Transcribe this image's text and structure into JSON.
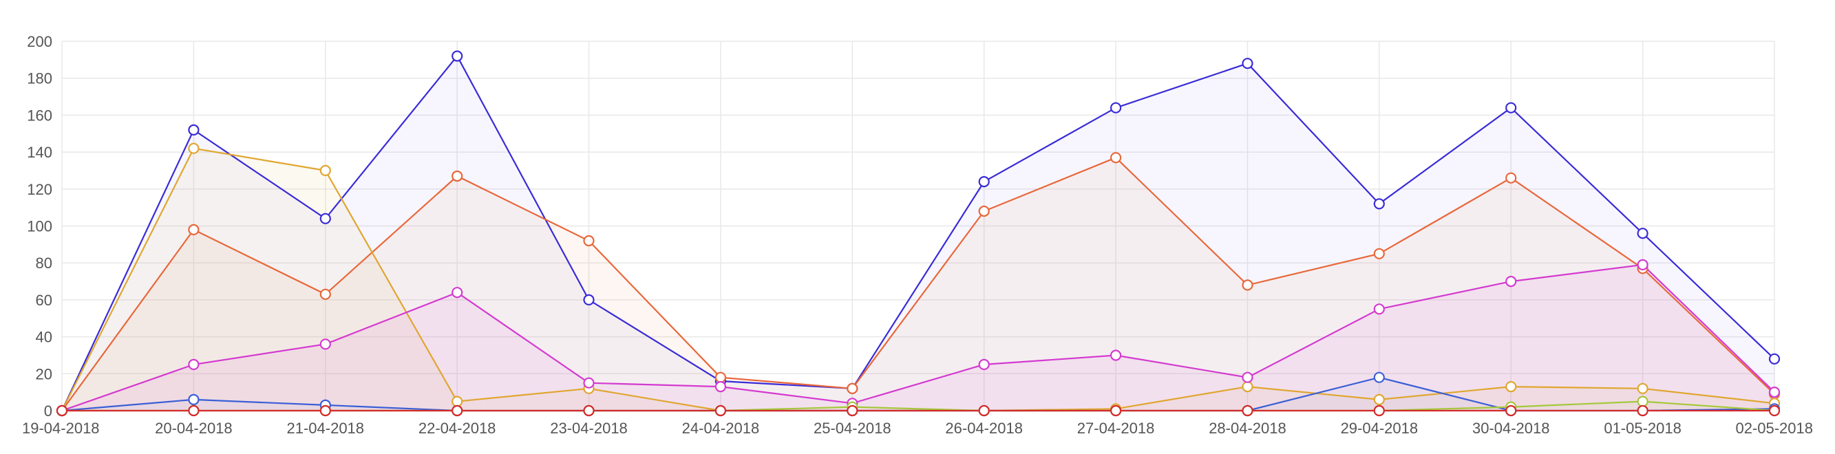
{
  "chart_data": {
    "type": "area",
    "title": "",
    "xlabel": "",
    "ylabel": "",
    "ylim": [
      0,
      200
    ],
    "y_ticks": [
      0,
      20,
      40,
      60,
      80,
      100,
      120,
      140,
      160,
      180,
      200
    ],
    "grid": true,
    "legend": "none",
    "categories": [
      "19-04-2018",
      "20-04-2018",
      "21-04-2018",
      "22-04-2018",
      "23-04-2018",
      "24-04-2018",
      "25-04-2018",
      "26-04-2018",
      "27-04-2018",
      "28-04-2018",
      "29-04-2018",
      "30-04-2018",
      "01-05-2018",
      "02-05-2018"
    ],
    "series": [
      {
        "color": "#3a2bd6",
        "fill": "rgba(120,110,230,0.06)",
        "values": [
          0,
          152,
          104,
          192,
          60,
          16,
          12,
          124,
          164,
          188,
          112,
          164,
          96,
          28
        ]
      },
      {
        "color": "#e8673a",
        "fill": "rgba(240,170,130,0.10)",
        "values": [
          0,
          98,
          63,
          127,
          92,
          18,
          12,
          108,
          137,
          68,
          85,
          126,
          77,
          9
        ]
      },
      {
        "color": "#e0a630",
        "fill": "rgba(230,200,120,0.10)",
        "values": [
          0,
          142,
          130,
          5,
          12,
          0,
          0,
          0,
          1,
          13,
          6,
          13,
          12,
          4
        ]
      },
      {
        "color": "#d43ad0",
        "fill": "rgba(220,120,220,0.12)",
        "values": [
          0,
          25,
          36,
          64,
          15,
          13,
          4,
          25,
          30,
          18,
          55,
          70,
          79,
          10
        ]
      },
      {
        "color": "#3a5fd6",
        "fill": "rgba(100,130,220,0.05)",
        "values": [
          0,
          6,
          3,
          0,
          0,
          0,
          0,
          0,
          0,
          0,
          18,
          0,
          0,
          1
        ]
      },
      {
        "color": "#a4c83a",
        "fill": "rgba(170,200,80,0.04)",
        "values": [
          0,
          0,
          0,
          0,
          0,
          0,
          2,
          0,
          0,
          0,
          0,
          2,
          5,
          0
        ]
      },
      {
        "color": "#d42a2a",
        "fill": "rgba(210,60,60,0.03)",
        "values": [
          0,
          0,
          0,
          0,
          0,
          0,
          0,
          0,
          0,
          0,
          0,
          0,
          0,
          0
        ]
      }
    ]
  }
}
